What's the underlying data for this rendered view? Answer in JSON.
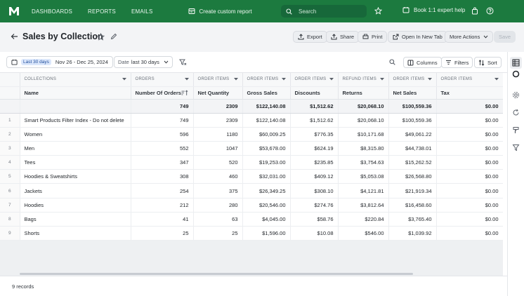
{
  "nav": {
    "links": [
      "DASHBOARDS",
      "REPORTS",
      "EMAILS"
    ],
    "create_custom_report": "Create custom report",
    "search_placeholder": "Search",
    "expert_help": "Book 1:1 expert help"
  },
  "header": {
    "title": "Sales by Collection",
    "buttons": {
      "export": "Export",
      "share": "Share",
      "print": "Print",
      "open_new_tab": "Open In New Tab",
      "more_actions": "More Actions",
      "save": "Save"
    }
  },
  "filters": {
    "date_chip": "Last 30 days",
    "date_range": "Nov 26 - Dec 25, 2024",
    "period_label": "Date",
    "period_value": "last 30 days",
    "columns": "Columns",
    "filters": "Filters",
    "sort": "Sort"
  },
  "table": {
    "groups": [
      "COLLECTIONS",
      "ORDERS",
      "ORDER ITEMS",
      "ORDER ITEMS",
      "ORDER ITEMS",
      "REFUND ITEMS",
      "ORDER ITEMS",
      "ORDER ITEMS"
    ],
    "headers": [
      "Name",
      "Number Of Orders",
      "Net Quantity",
      "Gross Sales",
      "Discounts",
      "Returns",
      "Net Sales",
      "Tax"
    ],
    "totals": [
      "",
      "749",
      "2309",
      "$122,140.08",
      "$1,512.62",
      "$20,068.10",
      "$100,559.36",
      "$0.00"
    ],
    "rows": [
      [
        "1",
        "Smart Products Filter Index - Do not delete",
        "749",
        "2309",
        "$122,140.08",
        "$1,512.62",
        "$20,068.10",
        "$100,559.36",
        "$0.00"
      ],
      [
        "2",
        "Women",
        "596",
        "1180",
        "$60,009.25",
        "$776.35",
        "$10,171.68",
        "$49,061.22",
        "$0.00"
      ],
      [
        "3",
        "Men",
        "552",
        "1047",
        "$53,678.00",
        "$624.19",
        "$8,315.80",
        "$44,738.01",
        "$0.00"
      ],
      [
        "4",
        "Tees",
        "347",
        "520",
        "$19,253.00",
        "$235.85",
        "$3,754.63",
        "$15,262.52",
        "$0.00"
      ],
      [
        "5",
        "Hoodies & Sweatshirts",
        "308",
        "460",
        "$32,031.00",
        "$409.12",
        "$5,053.08",
        "$26,568.80",
        "$0.00"
      ],
      [
        "6",
        "Jackets",
        "254",
        "375",
        "$26,349.25",
        "$308.10",
        "$4,121.81",
        "$21,919.34",
        "$0.00"
      ],
      [
        "7",
        "Hoodies",
        "212",
        "280",
        "$20,546.00",
        "$274.76",
        "$3,812.64",
        "$16,458.60",
        "$0.00"
      ],
      [
        "8",
        "Bags",
        "41",
        "63",
        "$4,045.00",
        "$58.76",
        "$220.84",
        "$3,765.40",
        "$0.00"
      ],
      [
        "9",
        "Shorts",
        "25",
        "25",
        "$1,596.00",
        "$10.08",
        "$546.00",
        "$1,039.92",
        "$0.00"
      ]
    ]
  },
  "footer": {
    "records": "9 records"
  },
  "colors": {
    "brand_green": "#1c7a3f",
    "chip_blue": "#dbe7fb"
  }
}
